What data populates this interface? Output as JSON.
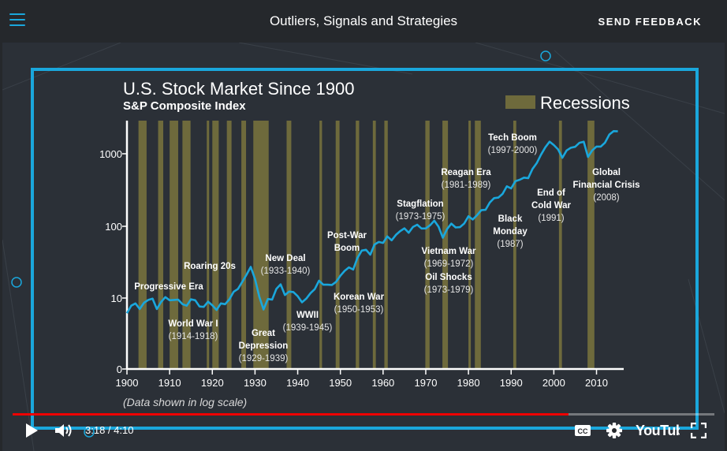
{
  "topbar": {
    "title": "Outliers, Signals and Strategies",
    "feedback_label": "SEND FEEDBACK",
    "menu_icon": "hamburger-menu-icon"
  },
  "chart": {
    "title": "U.S. Stock Market Since 1900",
    "subtitle": "S&P Composite Index",
    "legend_label": "Recessions",
    "footnote": "(Data shown in log scale)",
    "annotations": [
      {
        "lines": [
          "Progressive Era"
        ]
      },
      {
        "lines": [
          "World War I",
          "(1914-1918)"
        ]
      },
      {
        "lines": [
          "Roaring 20s"
        ]
      },
      {
        "lines": [
          "Great",
          "Depression",
          "(1929-1939)"
        ]
      },
      {
        "lines": [
          "New Deal",
          "(1933-1940)"
        ]
      },
      {
        "lines": [
          "WWII",
          "(1939-1945)"
        ]
      },
      {
        "lines": [
          "Post-War",
          "Boom"
        ]
      },
      {
        "lines": [
          "Korean War",
          "(1950-1953)"
        ]
      },
      {
        "lines": [
          "Stagflation",
          "(1973-1975)"
        ]
      },
      {
        "lines": [
          "Vietnam War",
          "(1969-1972)"
        ]
      },
      {
        "lines": [
          "Oil Shocks",
          "(1973-1979)"
        ]
      },
      {
        "lines": [
          "Reagan Era",
          "(1981-1989)"
        ]
      },
      {
        "lines": [
          "Black",
          "Monday",
          "(1987)"
        ]
      },
      {
        "lines": [
          "Tech Boom",
          "(1997-2000)"
        ]
      },
      {
        "lines": [
          "End of",
          "Cold War",
          "(1991)"
        ]
      },
      {
        "lines": [
          "Global",
          "Financial Crisis",
          "(2008)"
        ]
      }
    ]
  },
  "chart_data": {
    "type": "line",
    "title": "U.S. Stock Market Since 1900",
    "subtitle": "S&P Composite Index",
    "log_scale": true,
    "xlim": [
      1900,
      2016
    ],
    "x_ticks": [
      1900,
      1910,
      1920,
      1930,
      1940,
      1950,
      1960,
      1970,
      1980,
      1990,
      2000,
      2010
    ],
    "y_ticks": [
      {
        "label": "0",
        "value": 1
      },
      {
        "label": "10",
        "value": 10
      },
      {
        "label": "100",
        "value": 100
      },
      {
        "label": "1000",
        "value": 1000
      }
    ],
    "series": [
      {
        "x": [
          1900,
          1901,
          1902,
          1903,
          1904,
          1905,
          1906,
          1907,
          1908,
          1909,
          1910,
          1911,
          1912,
          1913,
          1914,
          1915,
          1916,
          1917,
          1918,
          1919,
          1920,
          1921,
          1922,
          1923,
          1924,
          1925,
          1926,
          1927,
          1928,
          1929,
          1930,
          1931,
          1932,
          1933,
          1934,
          1935,
          1936,
          1937,
          1938,
          1939,
          1940,
          1941,
          1942,
          1943,
          1944,
          1945,
          1946,
          1947,
          1948,
          1949,
          1950,
          1951,
          1952,
          1953,
          1954,
          1955,
          1956,
          1957,
          1958,
          1959,
          1960,
          1961,
          1962,
          1963,
          1964,
          1965,
          1966,
          1967,
          1968,
          1969,
          1970,
          1971,
          1972,
          1973,
          1974,
          1975,
          1976,
          1977,
          1978,
          1979,
          1980,
          1981,
          1982,
          1983,
          1984,
          1985,
          1986,
          1987,
          1988,
          1989,
          1990,
          1991,
          1992,
          1993,
          1994,
          1995,
          1996,
          1997,
          1998,
          1999,
          2000,
          2001,
          2002,
          2003,
          2004,
          2005,
          2006,
          2007,
          2008,
          2009,
          2010,
          2011,
          2012,
          2013,
          2014,
          2015
        ],
        "y": [
          6.1,
          7.8,
          8.4,
          7.0,
          8.6,
          9.4,
          9.8,
          7.0,
          8.8,
          10.3,
          9.3,
          9.4,
          9.5,
          8.2,
          7.8,
          9.6,
          9.3,
          7.6,
          7.5,
          8.9,
          7.9,
          6.8,
          8.4,
          8.2,
          9.6,
          12.2,
          13.4,
          16.7,
          21.0,
          27.0,
          18.4,
          10.5,
          6.9,
          9.7,
          9.5,
          13.4,
          15.5,
          11.0,
          12.3,
          12.1,
          10.6,
          8.7,
          9.8,
          11.7,
          13.3,
          17.4,
          15.3,
          15.3,
          15.2,
          16.8,
          20.4,
          23.8,
          26.6,
          24.8,
          35.9,
          45.5,
          46.7,
          39.9,
          55.2,
          59.9,
          58.1,
          71.6,
          63.1,
          75.0,
          84.8,
          92.4,
          80.3,
          96.5,
          103.9,
          92.1,
          92.2,
          102.1,
          118.0,
          97.6,
          68.6,
          90.2,
          107.5,
          95.1,
          96.1,
          107.9,
          135.8,
          122.6,
          140.6,
          164.9,
          167.2,
          211.3,
          242.2,
          247.1,
          277.7,
          353.4,
          330.2,
          417.1,
          435.7,
          466.5,
          459.3,
          615.9,
          740.7,
          970.4,
          1229.2,
          1469.3,
          1320.3,
          1148.1,
          879.8,
          1111.9,
          1211.9,
          1248.3,
          1418.3,
          1468.4,
          903.3,
          1115.1,
          1257.6,
          1257.6,
          1426.2,
          1848.4,
          2058.9,
          2043.9
        ]
      }
    ],
    "recessions": [
      [
        1902.7,
        1904.6
      ],
      [
        1907.3,
        1908.5
      ],
      [
        1910.0,
        1912.0
      ],
      [
        1913.0,
        1914.9
      ],
      [
        1918.7,
        1919.2
      ],
      [
        1920.0,
        1921.5
      ],
      [
        1923.4,
        1924.5
      ],
      [
        1926.8,
        1927.9
      ],
      [
        1929.6,
        1933.2
      ],
      [
        1937.4,
        1938.5
      ],
      [
        1945.1,
        1945.7
      ],
      [
        1948.9,
        1949.8
      ],
      [
        1953.6,
        1954.4
      ],
      [
        1957.6,
        1958.3
      ],
      [
        1960.3,
        1961.1
      ],
      [
        1969.9,
        1970.9
      ],
      [
        1973.9,
        1975.2
      ],
      [
        1980.0,
        1980.5
      ],
      [
        1981.5,
        1982.9
      ],
      [
        1990.5,
        1991.2
      ],
      [
        2001.2,
        2001.9
      ],
      [
        2007.9,
        2009.5
      ]
    ],
    "legend": {
      "label": "Recessions",
      "color": "#6e6a3c",
      "position": "top-right"
    },
    "xlabel": "",
    "ylabel": "",
    "note": "(Data shown in log scale)",
    "line_color": "#1aa7dc",
    "grid": false
  },
  "player": {
    "current_time": "3:18",
    "duration": "4:10",
    "time_display": "3:18 / 4:10",
    "progress": 0.792,
    "brand": "YouTube",
    "icons": [
      "play-icon",
      "volume-icon",
      "captions-icon",
      "settings-gear-icon",
      "fullscreen-icon"
    ]
  },
  "colors": {
    "accent": "#1aa7dc",
    "progress": "#ee0000",
    "recession": "#6e6a3c"
  }
}
